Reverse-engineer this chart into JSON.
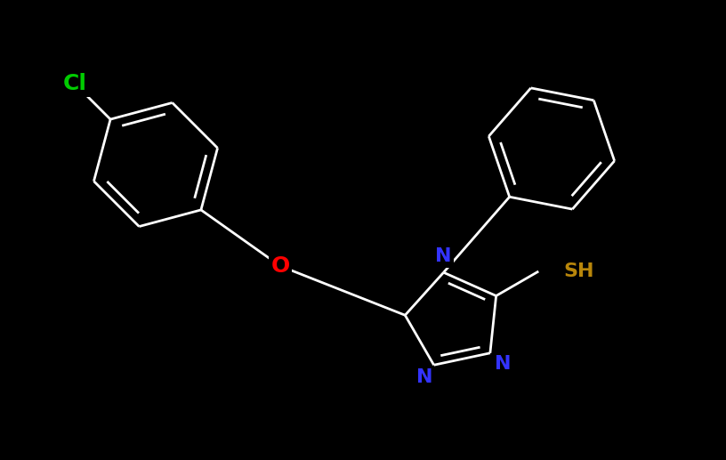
{
  "background_color": "#000000",
  "bond_color": "#ffffff",
  "bond_lw": 2.0,
  "dbo": 0.02,
  "figsize": [
    8.16,
    5.17
  ],
  "dpi": 100,
  "colors": {
    "Cl": "#00cc00",
    "O": "#ff0000",
    "N": "#3333ff",
    "SH": "#b8860b"
  },
  "fontsize": 16,
  "xlim": [
    0,
    816
  ],
  "ylim": [
    0,
    517
  ]
}
